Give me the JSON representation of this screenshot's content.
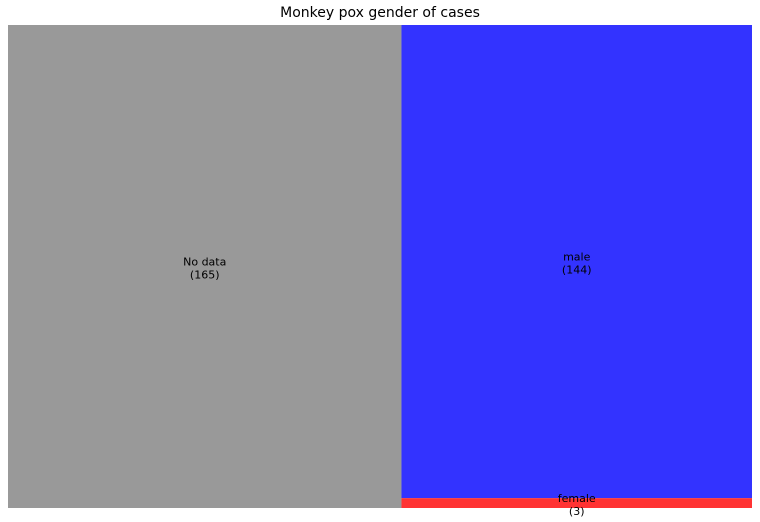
{
  "chart_data": {
    "type": "treemap",
    "title": "Monkey pox gender of cases",
    "items": [
      {
        "label": "No data",
        "value": 165,
        "value_text": "(165)",
        "color": "#999999"
      },
      {
        "label": "male",
        "value": 144,
        "value_text": "(144)",
        "color": "#3333ff"
      },
      {
        "label": "female",
        "value": 3,
        "value_text": "(3)",
        "color": "#ff3333"
      }
    ],
    "grid": false,
    "legend": "none"
  }
}
